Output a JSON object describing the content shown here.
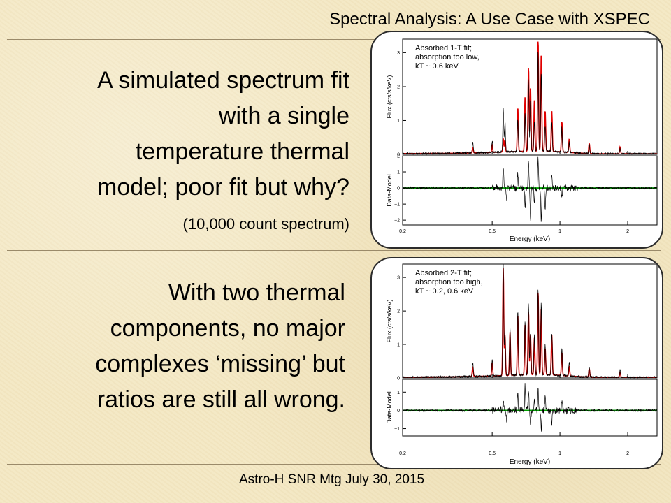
{
  "slide": {
    "title": "Spectral Analysis: A Use Case with XSPEC",
    "footer": "Astro-H SNR Mtg July 30, 2015",
    "top_text_lines": [
      "A simulated spectrum fit",
      "with a single",
      "temperature  thermal",
      "model; poor fit but why?"
    ],
    "top_subtext": "(10,000 count spectrum)",
    "bottom_text_lines": [
      "With two thermal",
      "components, no major",
      "complexes ‘missing’ but",
      "ratios are still all wrong."
    ]
  },
  "chart_data": [
    {
      "type": "line",
      "annotation": [
        "Absorbed 1-T fit;",
        "absorption too low,",
        "kT ~ 0.6 keV"
      ],
      "xlabel": "Energy (keV)",
      "ylabel_top": "Flux (cts/s/keV)",
      "ylabel_bottom": "Data-Model",
      "x_scale": "log",
      "xlim": [
        0.2,
        2.7
      ],
      "x_ticks": [
        "0.2",
        "0.5",
        "1",
        "2"
      ],
      "top_ylim": [
        0,
        3.4
      ],
      "top_y_ticks": [
        "0",
        "1",
        "2",
        "3"
      ],
      "bottom_ylim": [
        -2.3,
        2.0
      ],
      "bottom_y_ticks": [
        "2",
        "1",
        "0",
        "−1",
        "−2"
      ],
      "series": [
        {
          "role": "data",
          "color": "#000000"
        },
        {
          "role": "model",
          "color": "#e00000"
        },
        {
          "role": "zero-line",
          "color": "#00a000"
        }
      ],
      "peaks": [
        {
          "e": 0.41,
          "data": 0.3,
          "model": 0.15
        },
        {
          "e": 0.5,
          "data": 0.35,
          "model": 0.2
        },
        {
          "e": 0.56,
          "data": 1.3,
          "model": 0.4
        },
        {
          "e": 0.57,
          "data": 0.9,
          "model": 0.35
        },
        {
          "e": 0.65,
          "data": 0.9,
          "model": 1.3
        },
        {
          "e": 0.7,
          "data": 1.1,
          "model": 1.6
        },
        {
          "e": 0.725,
          "data": 2.1,
          "model": 2.5
        },
        {
          "e": 0.74,
          "data": 1.5,
          "model": 1.9
        },
        {
          "e": 0.77,
          "data": 0.9,
          "model": 1.5
        },
        {
          "e": 0.8,
          "data": 2.9,
          "model": 3.3
        },
        {
          "e": 0.826,
          "data": 2.4,
          "model": 2.9
        },
        {
          "e": 0.86,
          "data": 0.8,
          "model": 1.2
        },
        {
          "e": 0.92,
          "data": 0.9,
          "model": 1.2
        },
        {
          "e": 1.02,
          "data": 0.7,
          "model": 0.9
        },
        {
          "e": 1.1,
          "data": 0.3,
          "model": 0.4
        },
        {
          "e": 1.35,
          "data": 0.25,
          "model": 0.3
        },
        {
          "e": 1.85,
          "data": 0.15,
          "model": 0.2
        }
      ],
      "residual_spikes": [
        {
          "e": 0.56,
          "v": 1.4
        },
        {
          "e": 0.58,
          "v": -0.8
        },
        {
          "e": 0.65,
          "v": 0.9
        },
        {
          "e": 0.7,
          "v": -1.2
        },
        {
          "e": 0.725,
          "v": 1.6
        },
        {
          "e": 0.74,
          "v": -2.0
        },
        {
          "e": 0.77,
          "v": -1.0
        },
        {
          "e": 0.8,
          "v": 1.8
        },
        {
          "e": 0.826,
          "v": -2.1
        },
        {
          "e": 0.86,
          "v": -1.3
        },
        {
          "e": 0.92,
          "v": 0.8
        },
        {
          "e": 1.02,
          "v": -0.7
        }
      ]
    },
    {
      "type": "line",
      "annotation": [
        "Absorbed 2-T fit;",
        "absorption too high,",
        "kT ~ 0.2, 0.6 keV"
      ],
      "xlabel": "Energy (keV)",
      "ylabel_top": "Flux (cts/s/keV)",
      "ylabel_bottom": "Data-Model",
      "x_scale": "log",
      "xlim": [
        0.2,
        2.7
      ],
      "x_ticks": [
        "0.2",
        "0.5",
        "1",
        "2"
      ],
      "top_ylim": [
        0,
        3.4
      ],
      "top_y_ticks": [
        "0",
        "1",
        "2",
        "3"
      ],
      "bottom_ylim": [
        -1.4,
        1.7
      ],
      "bottom_y_ticks": [
        "1",
        "0",
        "−1"
      ],
      "series": [
        {
          "role": "data",
          "color": "#000000"
        },
        {
          "role": "model",
          "color": "#e00000"
        },
        {
          "role": "zero-line",
          "color": "#00a000"
        }
      ],
      "peaks": [
        {
          "e": 0.41,
          "data": 0.4,
          "model": 0.3
        },
        {
          "e": 0.5,
          "data": 0.5,
          "model": 0.4
        },
        {
          "e": 0.56,
          "data": 3.3,
          "model": 3.2
        },
        {
          "e": 0.57,
          "data": 1.3,
          "model": 1.2
        },
        {
          "e": 0.6,
          "data": 1.4,
          "model": 1.3
        },
        {
          "e": 0.65,
          "data": 2.0,
          "model": 1.8
        },
        {
          "e": 0.7,
          "data": 1.6,
          "model": 1.5
        },
        {
          "e": 0.725,
          "data": 2.1,
          "model": 1.9
        },
        {
          "e": 0.74,
          "data": 1.3,
          "model": 1.2
        },
        {
          "e": 0.77,
          "data": 1.2,
          "model": 1.1
        },
        {
          "e": 0.8,
          "data": 2.6,
          "model": 2.5
        },
        {
          "e": 0.826,
          "data": 2.1,
          "model": 2.0
        },
        {
          "e": 0.86,
          "data": 0.9,
          "model": 0.8
        },
        {
          "e": 0.92,
          "data": 1.3,
          "model": 1.2
        },
        {
          "e": 1.02,
          "data": 0.8,
          "model": 0.7
        },
        {
          "e": 1.1,
          "data": 0.4,
          "model": 0.3
        },
        {
          "e": 1.35,
          "data": 0.3,
          "model": 0.25
        },
        {
          "e": 1.85,
          "data": 0.2,
          "model": 0.15
        }
      ],
      "residual_spikes": [
        {
          "e": 0.56,
          "v": 0.6
        },
        {
          "e": 0.58,
          "v": -0.6
        },
        {
          "e": 0.65,
          "v": 0.9
        },
        {
          "e": 0.7,
          "v": 1.3
        },
        {
          "e": 0.725,
          "v": 1.1
        },
        {
          "e": 0.74,
          "v": -0.9
        },
        {
          "e": 0.77,
          "v": 0.7
        },
        {
          "e": 0.8,
          "v": 1.2
        },
        {
          "e": 0.826,
          "v": -1.1
        },
        {
          "e": 0.86,
          "v": 0.8
        },
        {
          "e": 0.92,
          "v": -0.7
        },
        {
          "e": 1.02,
          "v": 0.5
        }
      ]
    }
  ]
}
